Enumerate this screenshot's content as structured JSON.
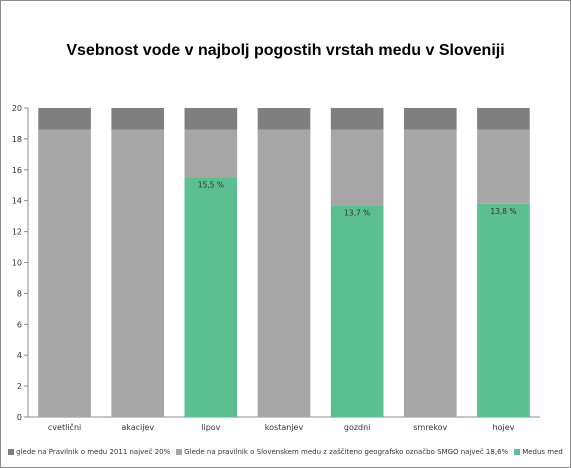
{
  "chart_data": {
    "type": "bar",
    "stacked": true,
    "title": "Vsebnost vode v najbolj pogostih vrstah medu v Sloveniji",
    "categories": [
      "cvetlični",
      "akacijev",
      "lipov",
      "kostanjev",
      "gozdni",
      "smrekov",
      "hojev"
    ],
    "ylim": [
      0,
      20
    ],
    "yticks": [
      0,
      2,
      4,
      6,
      8,
      10,
      12,
      14,
      16,
      18,
      20
    ],
    "grid": false,
    "legend_position": "bottom",
    "series": [
      {
        "name": "Medus med",
        "color": "#5bbf92",
        "values": [
          0,
          0,
          15.5,
          0,
          13.7,
          0,
          13.8
        ],
        "labels": [
          "",
          "",
          "15,5 %",
          "",
          "13,7 %",
          "",
          "13,8 %"
        ]
      },
      {
        "name": "Glede na pravilnik o Slovenskem medu z zaščiteno geografsko označbo SMGO največ 18,6%",
        "color": "#a6a6a6",
        "values": [
          18.6,
          18.6,
          3.1,
          18.6,
          4.9,
          18.6,
          4.8
        ]
      },
      {
        "name": "glede na Pravilnik o medu 2011 največ 20%",
        "color": "#7f7f7f",
        "values": [
          1.4,
          1.4,
          1.4,
          1.4,
          1.4,
          1.4,
          1.4
        ]
      }
    ],
    "legend_order": [
      2,
      1,
      0
    ]
  }
}
